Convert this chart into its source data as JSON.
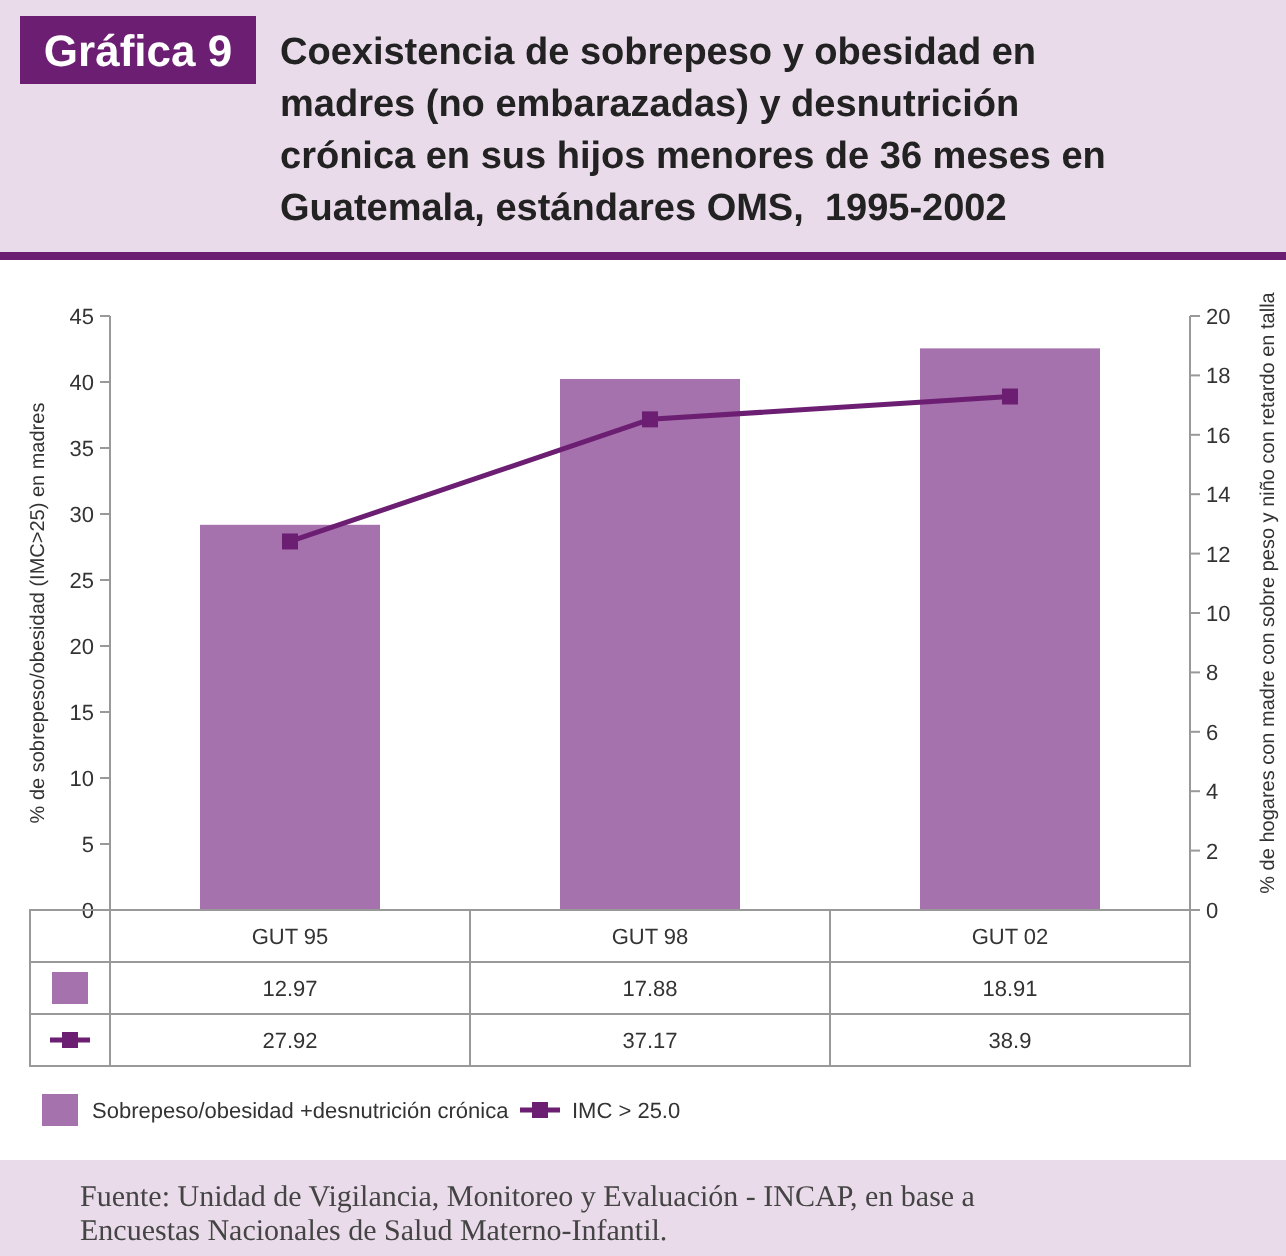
{
  "chart_data": {
    "type": "bar",
    "title": "Coexistencia de sobrepeso y obesidad en madres (no embarazadas) y desnutrición crónica en sus hijos menores de 36 meses en Guatemala, estándares OMS,  1995-2002",
    "ylabel": "% de sobrepeso/obesidad (IMC>25) en madres",
    "y2label": "% de hogares con madre con sobre peso y niño con retardo en talla",
    "categories": [
      "GUT 95",
      "GUT 98",
      "GUT 02"
    ],
    "series": [
      {
        "name": "Sobrepeso/obesidad +desnutrición crónica",
        "axis": "y2",
        "color": "#a672ad",
        "values": [
          12.97,
          17.88,
          18.91
        ]
      },
      {
        "name": "IMC > 25.0",
        "type": "line",
        "axis": "y",
        "color": "#6c1f72",
        "marker": "square",
        "values": [
          27.92,
          37.17,
          38.9
        ]
      }
    ],
    "ylim": [
      0,
      45
    ],
    "yticks": [
      0,
      5,
      10,
      15,
      20,
      25,
      30,
      35,
      40,
      45
    ],
    "y2lim": [
      0,
      20
    ],
    "y2ticks": [
      0,
      2,
      4,
      6,
      8,
      10,
      12,
      14,
      16,
      18,
      20
    ],
    "data_labels": true,
    "legend": "bottom",
    "annotations": [
      "Gráfica 9",
      "Fuente: Unidad de Vigilancia, Monitoreo y Evaluación - INCAP, en base a Encuestas Nacionales de Salud Materno-Infantil."
    ]
  }
}
